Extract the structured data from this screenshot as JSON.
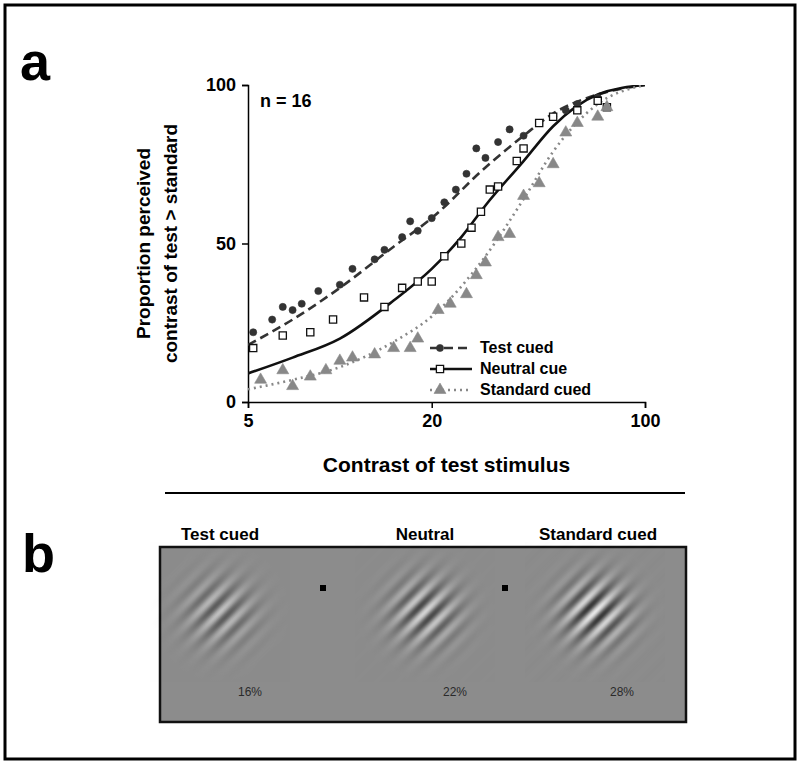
{
  "chart_data": {
    "type": "scatter",
    "annotations": [
      "a",
      "n = 16"
    ],
    "xlabel": "Contrast of test stimulus",
    "ylabel": [
      "Proportion perceived",
      "contrast of test > standard"
    ],
    "log": "x",
    "xlim": [
      5,
      100
    ],
    "xticks": [
      5,
      20,
      100
    ],
    "ylim": [
      0,
      100
    ],
    "yticks": [
      0,
      50,
      100
    ],
    "legend": "lower right",
    "series": [
      {
        "name": "Test cued",
        "color": "#333333",
        "marker": "circle",
        "line_style": "dashed",
        "x": [
          5.2,
          6,
          6.5,
          7,
          7.5,
          8.5,
          10,
          11,
          13,
          14,
          16,
          17,
          18,
          20,
          22,
          24,
          26,
          28,
          30,
          33,
          36,
          40,
          45,
          50,
          55,
          60,
          70
        ],
        "values": [
          22,
          26,
          30,
          29,
          31,
          35,
          37,
          42,
          45,
          48,
          52,
          57,
          54,
          58,
          63,
          67,
          72,
          80,
          77,
          82,
          86,
          84,
          88,
          90,
          92,
          94,
          96
        ],
        "fit_x": [
          5,
          7,
          10,
          15,
          20,
          30,
          40,
          50,
          70,
          100
        ],
        "fit_values": [
          18,
          26,
          36,
          49,
          58,
          74,
          84,
          91,
          97,
          100
        ]
      },
      {
        "name": "Neutral cue",
        "color": "#111111",
        "marker": "square",
        "line_style": "solid",
        "x": [
          5.2,
          6.5,
          8,
          9.5,
          12,
          14,
          16,
          18,
          20,
          22,
          25,
          27,
          29,
          31,
          33,
          38,
          40,
          45,
          50,
          60,
          70,
          75
        ],
        "values": [
          17,
          21,
          22,
          26,
          33,
          30,
          36,
          38,
          38,
          46,
          50,
          55,
          60,
          67,
          68,
          76,
          80,
          88,
          90,
          92,
          95,
          93
        ],
        "fit_x": [
          5,
          7,
          10,
          15,
          20,
          25,
          30,
          40,
          50,
          70,
          100
        ],
        "fit_values": [
          9,
          14,
          20,
          32,
          42,
          52,
          62,
          76,
          87,
          97,
          100
        ]
      },
      {
        "name": "Standard cued",
        "color": "#888888",
        "marker": "triangle",
        "line_style": "dotted",
        "x": [
          5.5,
          6.5,
          7,
          8,
          9,
          10,
          11,
          13,
          15,
          17,
          18,
          21,
          23,
          26,
          28,
          30,
          33,
          36,
          40,
          45,
          50,
          55,
          60,
          70,
          75
        ],
        "values": [
          7,
          10,
          5,
          8,
          10,
          13,
          14,
          15,
          17,
          17,
          20,
          29,
          31,
          34,
          40,
          44,
          52,
          53,
          65,
          69,
          75,
          85,
          88,
          90,
          93
        ],
        "fit_x": [
          5,
          7,
          10,
          15,
          20,
          30,
          40,
          50,
          70,
          100
        ],
        "fit_values": [
          4,
          7,
          11,
          19,
          27,
          46,
          64,
          79,
          94,
          100
        ]
      }
    ]
  },
  "panel_b": {
    "label": "b",
    "stimuli": [
      {
        "title": "Test cued",
        "contrast": 16,
        "label": "16%"
      },
      {
        "title": "Neutral",
        "contrast": 22,
        "label": "22%"
      },
      {
        "title": "Standard cued",
        "contrast": 28,
        "label": "28%"
      }
    ]
  }
}
